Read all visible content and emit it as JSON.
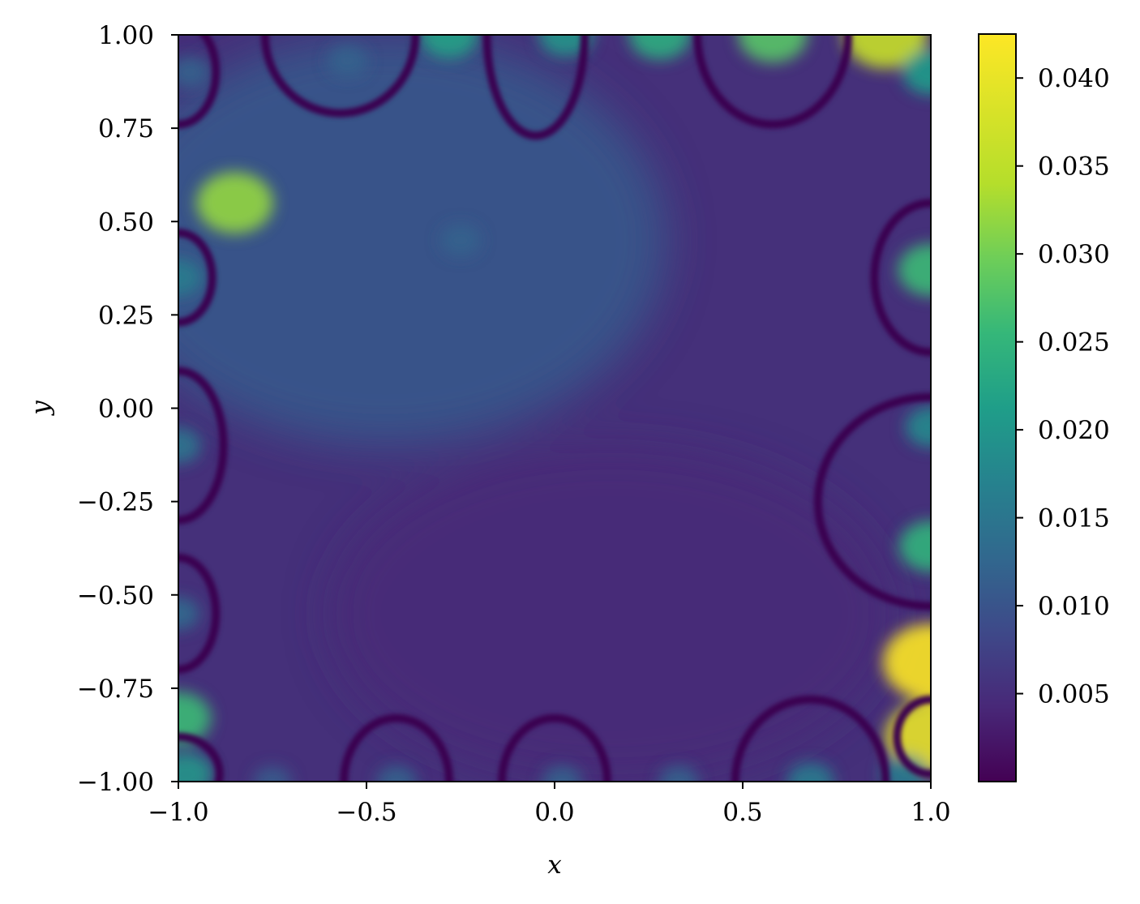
{
  "chart_data": {
    "type": "heatmap",
    "title": "",
    "xlabel": "x",
    "ylabel": "y",
    "xlim": [
      -1.0,
      1.0
    ],
    "ylim": [
      -1.0,
      1.0
    ],
    "x_ticks": [
      -1.0,
      -0.5,
      0.0,
      0.5,
      1.0
    ],
    "x_tick_labels": [
      "−1.0",
      "−0.5",
      "0.0",
      "0.5",
      "1.0"
    ],
    "y_ticks": [
      1.0,
      0.75,
      0.5,
      0.25,
      0.0,
      -0.25,
      -0.5,
      -0.75,
      -1.0
    ],
    "y_tick_labels": [
      "1.00",
      "0.75",
      "0.50",
      "0.25",
      "0.00",
      "−0.25",
      "−0.50",
      "−0.75",
      "−1.00"
    ],
    "colormap": "viridis",
    "colorbar": {
      "range": [
        0.0,
        0.0425
      ],
      "ticks": [
        0.005,
        0.01,
        0.015,
        0.02,
        0.025,
        0.03,
        0.035,
        0.04
      ],
      "tick_labels": [
        "0.005",
        "0.010",
        "0.015",
        "0.020",
        "0.025",
        "0.030",
        "0.035",
        "0.040"
      ]
    },
    "hotspots": [
      {
        "x": -0.85,
        "y": 0.55,
        "value": 0.032
      },
      {
        "x": 1.0,
        "y": -0.68,
        "value": 0.0425
      },
      {
        "x": 1.0,
        "y": -0.88,
        "value": 0.04
      },
      {
        "x": 0.88,
        "y": 1.0,
        "value": 0.036
      },
      {
        "x": 0.58,
        "y": 1.0,
        "value": 0.028
      },
      {
        "x": 0.28,
        "y": 1.0,
        "value": 0.024
      },
      {
        "x": -0.28,
        "y": 1.0,
        "value": 0.022
      },
      {
        "x": 0.03,
        "y": 1.0,
        "value": 0.02
      },
      {
        "x": 1.0,
        "y": 0.37,
        "value": 0.026
      },
      {
        "x": 1.0,
        "y": -0.37,
        "value": 0.025
      },
      {
        "x": 1.0,
        "y": 0.9,
        "value": 0.021
      },
      {
        "x": 1.0,
        "y": -0.05,
        "value": 0.018
      },
      {
        "x": -1.0,
        "y": -0.83,
        "value": 0.026
      },
      {
        "x": -0.98,
        "y": -0.98,
        "value": 0.02
      },
      {
        "x": -1.0,
        "y": -0.1,
        "value": 0.015
      },
      {
        "x": -1.0,
        "y": 0.35,
        "value": 0.016
      },
      {
        "x": -1.0,
        "y": -0.55,
        "value": 0.013
      },
      {
        "x": -0.97,
        "y": 0.9,
        "value": 0.012
      },
      {
        "x": -0.42,
        "y": -1.0,
        "value": 0.012
      },
      {
        "x": 0.02,
        "y": -1.0,
        "value": 0.012
      },
      {
        "x": 0.33,
        "y": -1.0,
        "value": 0.012
      },
      {
        "x": 0.68,
        "y": -1.0,
        "value": 0.016
      },
      {
        "x": 0.93,
        "y": -0.98,
        "value": 0.016
      },
      {
        "x": -0.75,
        "y": -1.0,
        "value": 0.011
      },
      {
        "x": -0.55,
        "y": 0.93,
        "value": 0.012
      },
      {
        "x": -0.25,
        "y": 0.45,
        "value": 0.012
      }
    ],
    "background_value": 0.006,
    "zero_contours": [
      {
        "x": -1.0,
        "y": 0.9,
        "rx": 0.1,
        "ry": 0.14
      },
      {
        "x": -1.0,
        "y": 0.35,
        "rx": 0.09,
        "ry": 0.12
      },
      {
        "x": -1.0,
        "y": -0.1,
        "rx": 0.12,
        "ry": 0.2
      },
      {
        "x": -1.0,
        "y": -0.55,
        "rx": 0.1,
        "ry": 0.15
      },
      {
        "x": -1.0,
        "y": -0.98,
        "rx": 0.11,
        "ry": 0.1
      },
      {
        "x": -0.57,
        "y": 1.0,
        "rx": 0.2,
        "ry": 0.21
      },
      {
        "x": -0.05,
        "y": 1.0,
        "rx": 0.13,
        "ry": 0.27
      },
      {
        "x": 0.58,
        "y": 1.0,
        "rx": 0.2,
        "ry": 0.24
      },
      {
        "x": 1.0,
        "y": 0.35,
        "rx": 0.15,
        "ry": 0.2
      },
      {
        "x": 1.0,
        "y": -0.25,
        "rx": 0.3,
        "ry": 0.28
      },
      {
        "x": 1.0,
        "y": -0.88,
        "rx": 0.09,
        "ry": 0.1
      },
      {
        "x": -0.42,
        "y": -1.0,
        "rx": 0.14,
        "ry": 0.17
      },
      {
        "x": 0.0,
        "y": -1.0,
        "rx": 0.14,
        "ry": 0.17
      },
      {
        "x": 0.68,
        "y": -1.0,
        "rx": 0.2,
        "ry": 0.22
      }
    ]
  }
}
